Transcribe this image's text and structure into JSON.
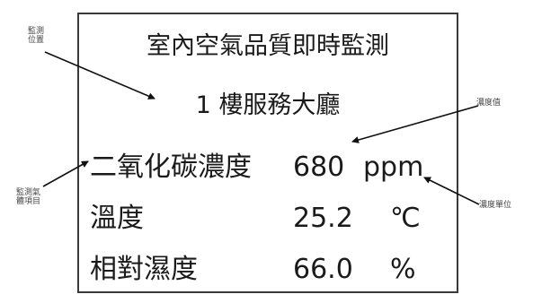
{
  "panel": {
    "title": "室內空氣品質即時監測",
    "location": "1 樓服務大廳",
    "rows": [
      {
        "label": "二氧化碳濃度",
        "value": "680",
        "unit": "ppm"
      },
      {
        "label": "溫度",
        "value": "25.2",
        "unit": "℃"
      },
      {
        "label": "相對濕度",
        "value": "66.0",
        "unit": "%"
      }
    ]
  },
  "annotations": {
    "location_label": "監測\n位置",
    "item_label": "監測氣\n體項目",
    "value_label": "濃度值",
    "unit_label": "濃度單位"
  }
}
